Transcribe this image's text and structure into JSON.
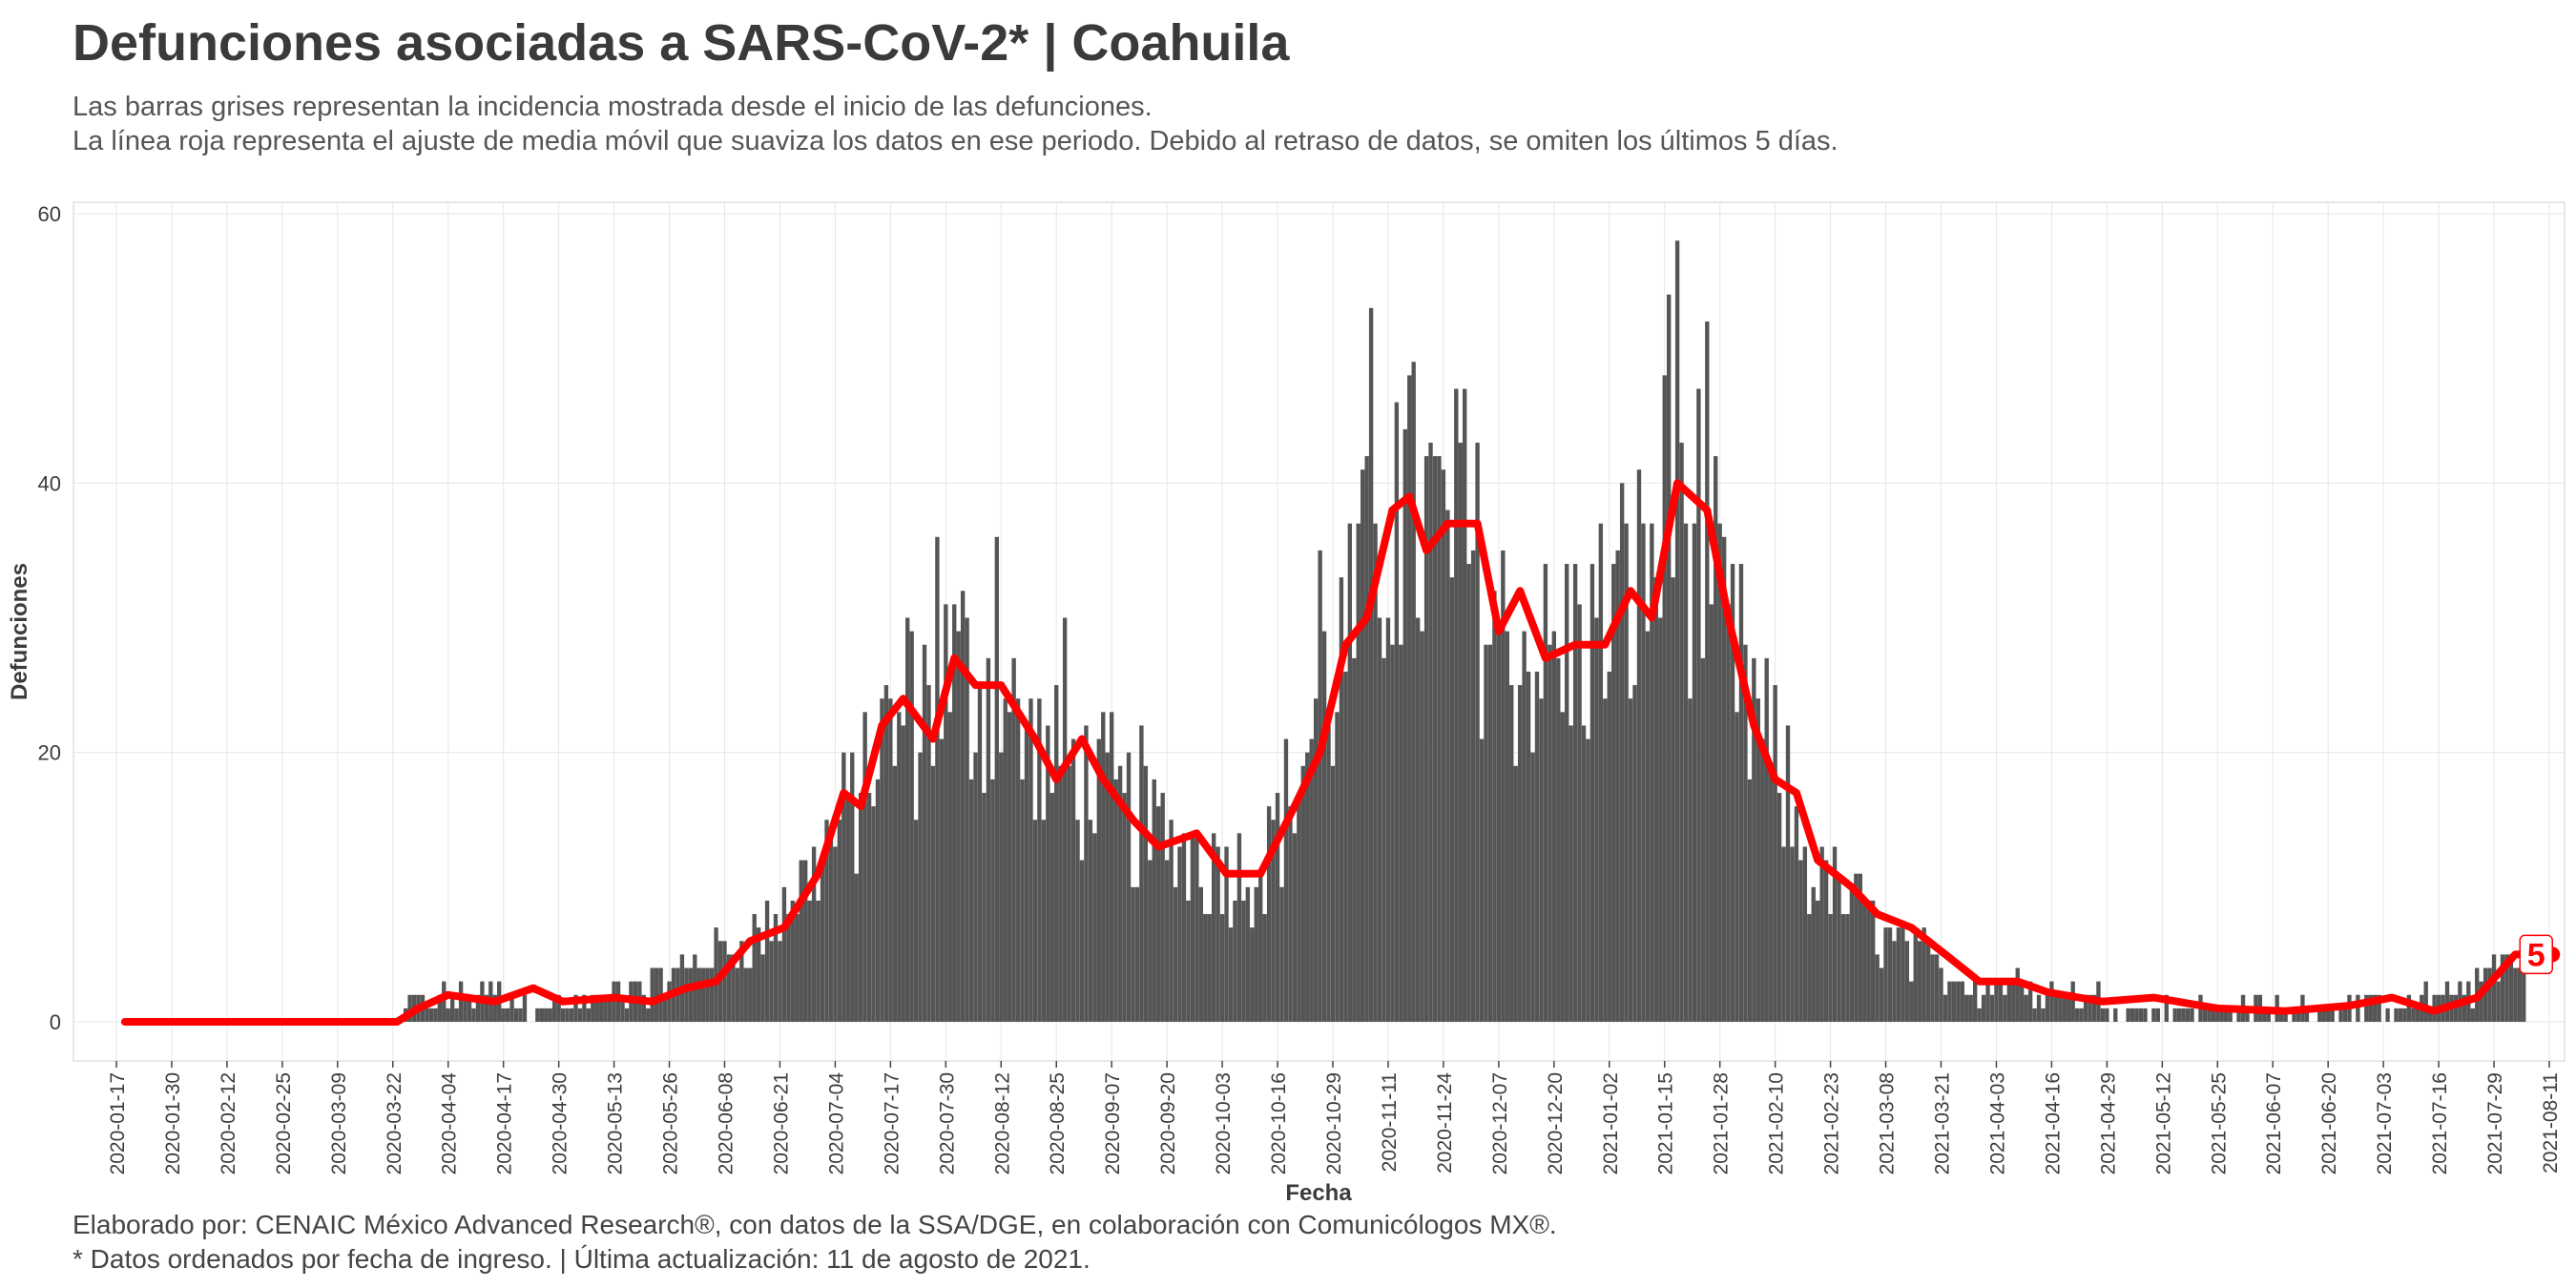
{
  "header": {
    "title": "Defunciones asociadas a SARS-CoV-2* | Coahuila",
    "subtitle_1": "Las barras grises representan la incidencia mostrada desde el inicio de las defunciones.",
    "subtitle_2": "La línea roja representa el ajuste de media móvil que suaviza los datos en ese periodo. Debido al retraso de datos, se omiten los últimos 5 días."
  },
  "footer": {
    "caption_1": "Elaborado por: CENAIC México Advanced Research®, con datos de la SSA/DGE, en colaboración con Comunicólogos MX®.",
    "caption_2": "* Datos ordenados por fecha de ingreso. | Última actualización: 11 de agosto de 2021."
  },
  "colors": {
    "bars": "#555555",
    "moving_average": "#ff0000",
    "grid": "#e6e6e6",
    "panel_border": "#e0e0e0",
    "text": "#3c3c3c"
  },
  "chart_data": {
    "type": "bar",
    "xlabel": "Fecha",
    "ylabel": "Defunciones",
    "ylim": [
      0,
      60
    ],
    "yticks": [
      0,
      20,
      40,
      60
    ],
    "xlim": [
      "2020-01-17",
      "2021-08-11"
    ],
    "xticks": [
      "2020-01-17",
      "2020-01-30",
      "2020-02-12",
      "2020-02-25",
      "2020-03-09",
      "2020-03-22",
      "2020-04-04",
      "2020-04-17",
      "2020-04-30",
      "2020-05-13",
      "2020-05-26",
      "2020-06-08",
      "2020-06-21",
      "2020-07-04",
      "2020-07-17",
      "2020-07-30",
      "2020-08-12",
      "2020-08-25",
      "2020-09-07",
      "2020-09-20",
      "2020-10-03",
      "2020-10-16",
      "2020-10-29",
      "2020-11-11",
      "2020-11-24",
      "2020-12-07",
      "2020-12-20",
      "2021-01-02",
      "2021-01-15",
      "2021-01-28",
      "2021-02-10",
      "2021-02-23",
      "2021-03-08",
      "2021-03-21",
      "2021-04-03",
      "2021-04-16",
      "2021-04-29",
      "2021-05-12",
      "2021-05-25",
      "2021-06-07",
      "2021-06-20",
      "2021-07-03",
      "2021-07-16",
      "2021-07-29",
      "2021-08-11"
    ],
    "grid": true,
    "series": [
      {
        "kind": "bars",
        "x_start": "2020-03-25",
        "x_end": "2021-08-05",
        "anchors": [
          [
            "2020-03-25",
            1
          ],
          [
            "2020-04-03",
            2
          ],
          [
            "2020-04-15",
            2
          ],
          [
            "2020-05-01",
            1
          ],
          [
            "2020-05-13",
            2
          ],
          [
            "2020-05-26",
            3
          ],
          [
            "2020-06-05",
            5
          ],
          [
            "2020-06-18",
            7
          ],
          [
            "2020-06-28",
            11
          ],
          [
            "2020-07-06",
            15
          ],
          [
            "2020-07-14",
            20
          ],
          [
            "2020-07-22",
            22
          ],
          [
            "2020-07-30",
            26
          ],
          [
            "2020-08-07",
            25
          ],
          [
            "2020-08-14",
            23
          ],
          [
            "2020-08-22",
            19
          ],
          [
            "2020-08-31",
            18
          ],
          [
            "2020-09-06",
            17
          ],
          [
            "2020-09-15",
            14
          ],
          [
            "2020-09-27",
            13
          ],
          [
            "2020-10-06",
            11
          ],
          [
            "2020-10-12",
            12
          ],
          [
            "2020-10-20",
            17
          ],
          [
            "2020-10-27",
            24
          ],
          [
            "2020-11-03",
            29
          ],
          [
            "2020-11-10",
            36
          ],
          [
            "2020-11-15",
            38
          ],
          [
            "2020-11-22",
            36
          ],
          [
            "2020-11-30",
            35
          ],
          [
            "2020-12-07",
            29
          ],
          [
            "2020-12-13",
            27
          ],
          [
            "2020-12-20",
            27
          ],
          [
            "2020-12-27",
            28
          ],
          [
            "2021-01-03",
            30
          ],
          [
            "2021-01-10",
            33
          ],
          [
            "2021-01-17",
            38
          ],
          [
            "2021-01-23",
            36
          ],
          [
            "2021-01-29",
            28
          ],
          [
            "2021-02-05",
            23
          ],
          [
            "2021-02-12",
            17
          ],
          [
            "2021-02-19",
            11
          ],
          [
            "2021-02-28",
            9
          ],
          [
            "2021-03-08",
            6
          ],
          [
            "2021-03-16",
            5
          ],
          [
            "2021-03-25",
            3
          ],
          [
            "2021-04-05",
            3
          ],
          [
            "2021-04-20",
            2
          ],
          [
            "2021-05-05",
            1
          ],
          [
            "2021-06-01",
            1
          ],
          [
            "2021-06-20",
            1
          ],
          [
            "2021-07-05",
            1
          ],
          [
            "2021-07-20",
            2
          ],
          [
            "2021-07-28",
            4
          ],
          [
            "2021-08-05",
            5
          ]
        ],
        "peaks": [
          [
            "2020-11-07",
            53
          ],
          [
            "2020-11-13",
            46
          ],
          [
            "2020-11-29",
            47
          ],
          [
            "2021-01-16",
            54
          ],
          [
            "2021-01-18",
            58
          ],
          [
            "2021-01-25",
            52
          ],
          [
            "2020-07-28",
            36
          ],
          [
            "2020-08-11",
            36
          ],
          [
            "2020-08-27",
            30
          ],
          [
            "2020-07-21",
            30
          ],
          [
            "2020-09-14",
            22
          ],
          [
            "2020-10-26",
            35
          ]
        ]
      },
      {
        "kind": "line",
        "name": "",
        "description_x_start": "2020-01-19",
        "points": [
          [
            "2020-01-19",
            0
          ],
          [
            "2020-03-23",
            0
          ],
          [
            "2020-03-28",
            1
          ],
          [
            "2020-04-04",
            2
          ],
          [
            "2020-04-15",
            1.5
          ],
          [
            "2020-04-24",
            2.5
          ],
          [
            "2020-05-01",
            1.5
          ],
          [
            "2020-05-13",
            1.8
          ],
          [
            "2020-05-22",
            1.5
          ],
          [
            "2020-05-30",
            2.5
          ],
          [
            "2020-06-06",
            3
          ],
          [
            "2020-06-14",
            6
          ],
          [
            "2020-06-22",
            7
          ],
          [
            "2020-06-30",
            11
          ],
          [
            "2020-07-06",
            17
          ],
          [
            "2020-07-10",
            16
          ],
          [
            "2020-07-15",
            22
          ],
          [
            "2020-07-20",
            24
          ],
          [
            "2020-07-27",
            21
          ],
          [
            "2020-08-01",
            27
          ],
          [
            "2020-08-06",
            25
          ],
          [
            "2020-08-12",
            25
          ],
          [
            "2020-08-20",
            21
          ],
          [
            "2020-08-25",
            18
          ],
          [
            "2020-08-31",
            21
          ],
          [
            "2020-09-05",
            18
          ],
          [
            "2020-09-12",
            15
          ],
          [
            "2020-09-18",
            13
          ],
          [
            "2020-09-27",
            14
          ],
          [
            "2020-10-04",
            11
          ],
          [
            "2020-10-12",
            11
          ],
          [
            "2020-10-20",
            16
          ],
          [
            "2020-10-26",
            20
          ],
          [
            "2020-11-01",
            28
          ],
          [
            "2020-11-06",
            30
          ],
          [
            "2020-11-12",
            38
          ],
          [
            "2020-11-16",
            39
          ],
          [
            "2020-11-20",
            35
          ],
          [
            "2020-11-25",
            37
          ],
          [
            "2020-12-02",
            37
          ],
          [
            "2020-12-07",
            29
          ],
          [
            "2020-12-12",
            32
          ],
          [
            "2020-12-18",
            27
          ],
          [
            "2020-12-25",
            28
          ],
          [
            "2021-01-01",
            28
          ],
          [
            "2021-01-07",
            32
          ],
          [
            "2021-01-12",
            30
          ],
          [
            "2021-01-18",
            40
          ],
          [
            "2021-01-25",
            38
          ],
          [
            "2021-01-30",
            30
          ],
          [
            "2021-02-05",
            22
          ],
          [
            "2021-02-10",
            18
          ],
          [
            "2021-02-15",
            17
          ],
          [
            "2021-02-20",
            12
          ],
          [
            "2021-02-28",
            10
          ],
          [
            "2021-03-06",
            8
          ],
          [
            "2021-03-14",
            7
          ],
          [
            "2021-03-22",
            5
          ],
          [
            "2021-03-30",
            3
          ],
          [
            "2021-04-08",
            3
          ],
          [
            "2021-04-15",
            2.2
          ],
          [
            "2021-04-28",
            1.5
          ],
          [
            "2021-05-10",
            1.8
          ],
          [
            "2021-05-25",
            1
          ],
          [
            "2021-06-10",
            0.8
          ],
          [
            "2021-06-25",
            1.2
          ],
          [
            "2021-07-05",
            1.8
          ],
          [
            "2021-07-15",
            0.8
          ],
          [
            "2021-07-25",
            1.8
          ],
          [
            "2021-08-03",
            5
          ],
          [
            "2021-08-05",
            5
          ]
        ]
      }
    ],
    "annotations": [
      {
        "label": "5",
        "x": "2021-08-05",
        "y": 5
      }
    ]
  }
}
